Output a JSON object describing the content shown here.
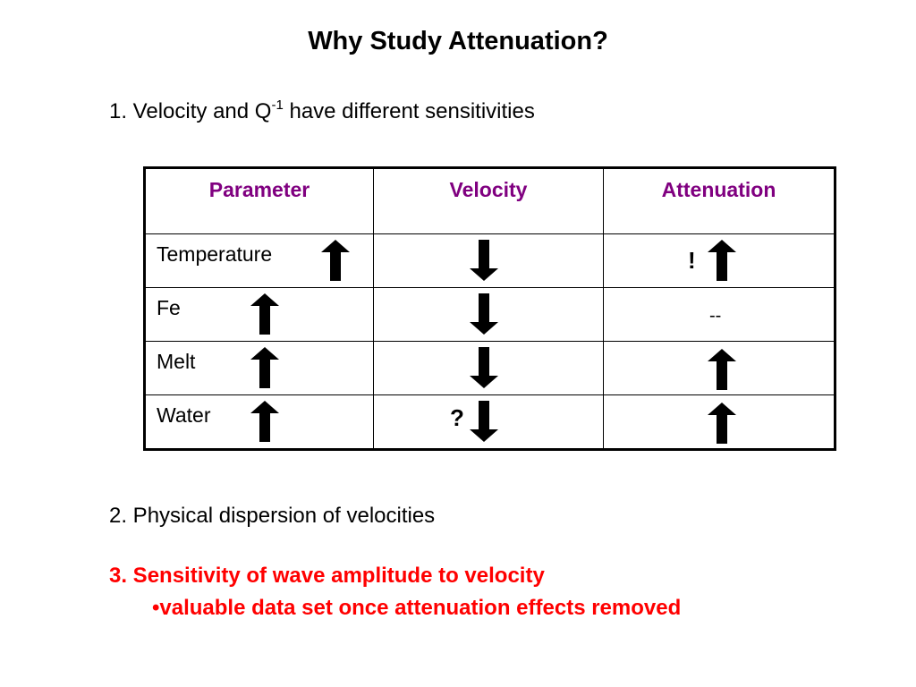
{
  "title": "Why Study Attenuation?",
  "point1": {
    "prefix": "1. Velocity and Q",
    "superscript": "-1",
    "suffix": " have different sensitivities"
  },
  "table": {
    "headers": [
      "Parameter",
      "Velocity",
      "Attenuation"
    ],
    "header_color": "#800080",
    "rows": [
      {
        "parameter": "Temperature",
        "parameter_arrow": "arrow-up-icon",
        "velocity_arrow": "arrow-down-icon",
        "velocity_mark": "",
        "attenuation_arrow": "arrow-up-icon",
        "attenuation_mark": "!"
      },
      {
        "parameter": "Fe",
        "parameter_arrow": "arrow-up-icon",
        "velocity_arrow": "arrow-down-icon",
        "velocity_mark": "",
        "attenuation_arrow": "",
        "attenuation_mark": "--"
      },
      {
        "parameter": "Melt",
        "parameter_arrow": "arrow-up-icon",
        "velocity_arrow": "arrow-down-icon",
        "velocity_mark": "",
        "attenuation_arrow": "arrow-up-icon",
        "attenuation_mark": ""
      },
      {
        "parameter": "Water",
        "parameter_arrow": "arrow-up-icon",
        "velocity_arrow": "arrow-down-icon",
        "velocity_mark": "?",
        "attenuation_arrow": "arrow-up-icon",
        "attenuation_mark": ""
      }
    ]
  },
  "point2": "2. Physical dispersion of velocities",
  "point3": "3. Sensitivity of wave amplitude to velocity",
  "point3_bullet": "•valuable data set once attenuation effects removed",
  "highlight_color": "#ff0000"
}
